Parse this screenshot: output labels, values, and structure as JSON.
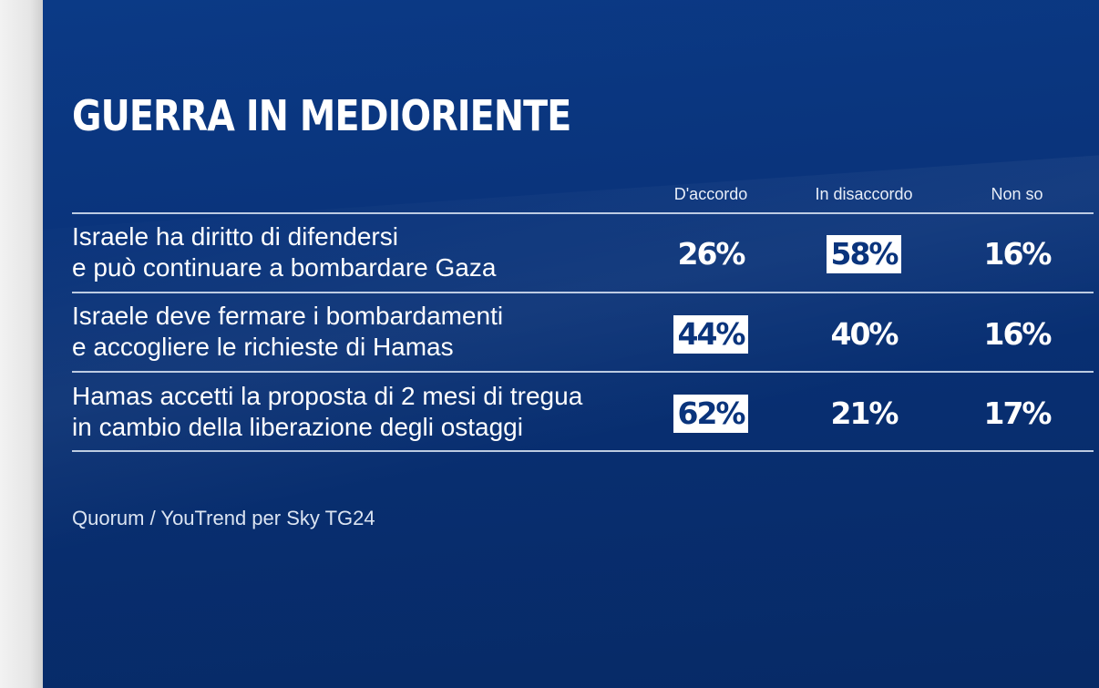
{
  "title": "GUERRA IN MEDIORIENTE",
  "source": "Quorum / YouTrend per Sky TG24",
  "colors": {
    "background": "#0a347c",
    "text": "#ffffff",
    "highlight_box": "#ffffff",
    "highlight_text": "#0a347c"
  },
  "columns": [
    "D'accordo",
    "In disaccordo",
    "Non so"
  ],
  "rows": [
    {
      "line1": "Israele ha diritto di difendersi",
      "line2": "e può continuare a bombardare Gaza",
      "values": [
        "26%",
        "58%",
        "16%"
      ],
      "highlight_index": 1
    },
    {
      "line1": "Israele deve fermare i bombardamenti",
      "line2": "e accogliere le richieste di Hamas",
      "values": [
        "44%",
        "40%",
        "16%"
      ],
      "highlight_index": 0
    },
    {
      "line1": "Hamas accetti la proposta di 2 mesi di tregua",
      "line2": "in cambio della liberazione degli ostaggi",
      "values": [
        "62%",
        "21%",
        "17%"
      ],
      "highlight_index": 0
    }
  ],
  "chart_data": {
    "type": "table",
    "title": "GUERRA IN MEDIORIENTE",
    "columns": [
      "D'accordo",
      "In disaccordo",
      "Non so"
    ],
    "rows": [
      "Israele ha diritto di difendersi e può continuare a bombardare Gaza",
      "Israele deve fermare i bombardamenti e accogliere le richieste di Hamas",
      "Hamas accetti la proposta di 2 mesi di tregua in cambio della liberazione degli ostaggi"
    ],
    "values": [
      [
        26,
        58,
        16
      ],
      [
        44,
        40,
        16
      ],
      [
        62,
        21,
        17
      ]
    ],
    "unit": "%",
    "highlighted_cells": [
      [
        0,
        1
      ],
      [
        1,
        0
      ],
      [
        2,
        0
      ]
    ]
  }
}
